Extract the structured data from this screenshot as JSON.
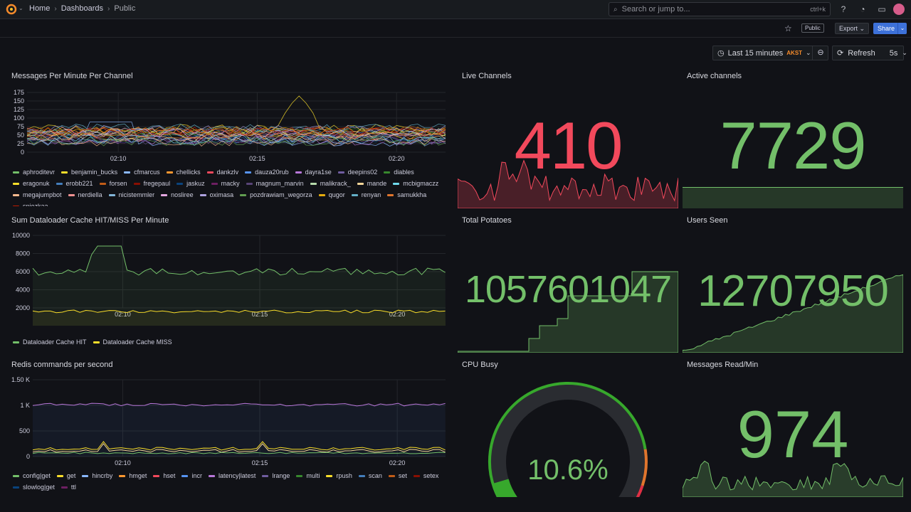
{
  "nav": {
    "breadcrumbs": [
      "Home",
      "Dashboards",
      "Public"
    ],
    "search_placeholder": "Search or jump to...",
    "search_shortcut": "ctrl+k"
  },
  "toolbar": {
    "public_badge": "Public",
    "export_label": "Export",
    "share_label": "Share",
    "time_range": "Last 15 minutes",
    "timezone": "AKST",
    "refresh_label": "Refresh",
    "refresh_interval": "5s"
  },
  "colors": {
    "green": "#73bf69",
    "red": "#f2495c",
    "yellow": "#fade2a",
    "accent": "#3d71d9"
  },
  "panels": {
    "messages_per_minute": {
      "title": "Messages Per Minute Per Channel",
      "y_ticks": [
        "175",
        "150",
        "125",
        "100",
        "75",
        "50",
        "25",
        "0"
      ],
      "x_ticks": [
        "02:10",
        "02:15",
        "02:20"
      ],
      "legend": [
        {
          "name": "aphroditevr",
          "color": "#73bf69"
        },
        {
          "name": "benjamin_bucks",
          "color": "#fade2a"
        },
        {
          "name": "cfmarcus",
          "color": "#8ab8ff"
        },
        {
          "name": "chellicks",
          "color": "#ff9830"
        },
        {
          "name": "dankzlv",
          "color": "#f2495c"
        },
        {
          "name": "dauza20rub",
          "color": "#5794f2"
        },
        {
          "name": "dayra1se",
          "color": "#b877d9"
        },
        {
          "name": "deepins02",
          "color": "#705da0"
        },
        {
          "name": "diables",
          "color": "#37872d"
        },
        {
          "name": "eragonuk",
          "color": "#fade2a"
        },
        {
          "name": "erobb221",
          "color": "#447ebc"
        },
        {
          "name": "forsen",
          "color": "#c15c17"
        },
        {
          "name": "fregepaul",
          "color": "#890f02"
        },
        {
          "name": "jaskuz",
          "color": "#0a437c"
        },
        {
          "name": "macky",
          "color": "#6d1f62"
        },
        {
          "name": "magnum_marvin",
          "color": "#584477"
        },
        {
          "name": "malikrack_",
          "color": "#b7dbab"
        },
        {
          "name": "mande",
          "color": "#f4d598"
        },
        {
          "name": "mcbigmaczz",
          "color": "#70dbed"
        },
        {
          "name": "megajumpbot",
          "color": "#f9ba8f"
        },
        {
          "name": "nerdiella",
          "color": "#f29191"
        },
        {
          "name": "nicistemmler",
          "color": "#82b5d8"
        },
        {
          "name": "nosliree",
          "color": "#e5a8e2"
        },
        {
          "name": "oximasa",
          "color": "#aea2e0"
        },
        {
          "name": "pozdrawiam_wegorza",
          "color": "#629e51"
        },
        {
          "name": "qugor",
          "color": "#e5ac0e"
        },
        {
          "name": "renyan",
          "color": "#64b0c8"
        },
        {
          "name": "samukkha",
          "color": "#e0752d"
        },
        {
          "name": "sniezkaa_",
          "color": "#bf1b00"
        }
      ]
    },
    "dataloader": {
      "title": "Sum Dataloader Cache HIT/MISS Per Minute",
      "y_ticks": [
        "10000",
        "8000",
        "6000",
        "4000",
        "2000"
      ],
      "x_ticks": [
        "02:10",
        "02:15",
        "02:20"
      ],
      "legend": [
        {
          "name": "Dataloader Cache HIT",
          "color": "#73bf69"
        },
        {
          "name": "Dataloader Cache MISS",
          "color": "#fade2a"
        }
      ]
    },
    "redis": {
      "title": "Redis commands per second",
      "y_ticks": [
        "1.50 K",
        "1 K",
        "500",
        "0"
      ],
      "x_ticks": [
        "02:10",
        "02:15",
        "02:20"
      ],
      "legend": [
        {
          "name": "config|get",
          "color": "#73bf69"
        },
        {
          "name": "get",
          "color": "#fade2a"
        },
        {
          "name": "hincrby",
          "color": "#8ab8ff"
        },
        {
          "name": "hmget",
          "color": "#ff9830"
        },
        {
          "name": "hset",
          "color": "#f2495c"
        },
        {
          "name": "incr",
          "color": "#5794f2"
        },
        {
          "name": "latency|latest",
          "color": "#b877d9"
        },
        {
          "name": "lrange",
          "color": "#705da0"
        },
        {
          "name": "multi",
          "color": "#37872d"
        },
        {
          "name": "rpush",
          "color": "#fade2a"
        },
        {
          "name": "scan",
          "color": "#447ebc"
        },
        {
          "name": "set",
          "color": "#c15c17"
        },
        {
          "name": "setex",
          "color": "#890f02"
        },
        {
          "name": "slowlog|get",
          "color": "#0a437c"
        },
        {
          "name": "ttl",
          "color": "#6d1f62"
        }
      ]
    },
    "live_channels": {
      "title": "Live Channels",
      "value": "410"
    },
    "active_channels": {
      "title": "Active channels",
      "value": "7729"
    },
    "total_potatoes": {
      "title": "Total Potatoes",
      "value": "1057601047"
    },
    "users_seen": {
      "title": "Users Seen",
      "value": "12707950"
    },
    "cpu_busy": {
      "title": "CPU Busy",
      "value": "10.6%",
      "fraction": 0.106
    },
    "messages_read": {
      "title": "Messages Read/Min",
      "value": "974"
    }
  }
}
